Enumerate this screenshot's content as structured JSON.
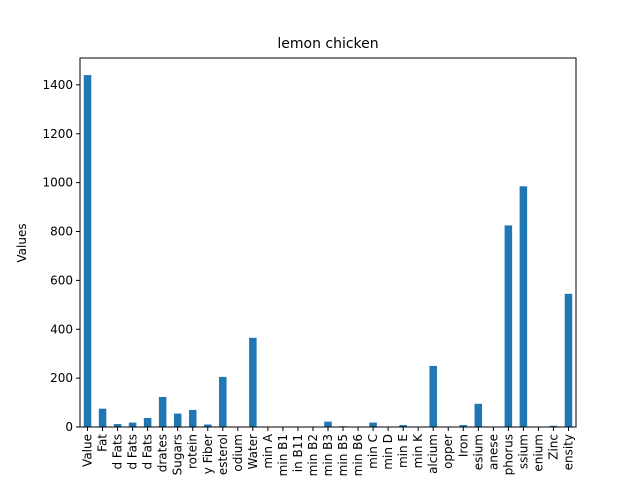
{
  "chart_data": {
    "type": "bar",
    "title": "lemon chicken",
    "xlabel": "",
    "ylabel": "Values",
    "ylim": [
      0,
      1510
    ],
    "yticks": [
      0,
      200,
      400,
      600,
      800,
      1000,
      1200,
      1400
    ],
    "grid": false,
    "bar_color": "#1f77b4",
    "categories": [
      "Value",
      "Fat",
      "d Fats",
      "d Fats",
      "d Fats",
      "drates",
      "Sugars",
      "rotein",
      "y Fiber",
      "esterol",
      "odium",
      "Water",
      "min A",
      "min B1",
      "in B11",
      "min B2",
      "min B3",
      "min B5",
      "min B6",
      "min C",
      "min D",
      "min E",
      "min K",
      "alcium",
      "opper",
      "Iron",
      "esium",
      "anese",
      "phorus",
      "ssium",
      "enium",
      "Zinc",
      "ensity"
    ],
    "values": [
      1440,
      75,
      12,
      18,
      37,
      123,
      55,
      70,
      10,
      205,
      0,
      365,
      0,
      0,
      0,
      0,
      22,
      3,
      2,
      18,
      0,
      8,
      0,
      250,
      0,
      8,
      95,
      0,
      825,
      985,
      0,
      5,
      545
    ]
  }
}
